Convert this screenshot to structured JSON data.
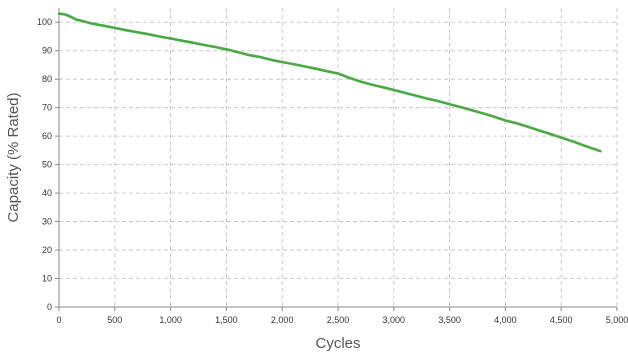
{
  "chart_data": {
    "type": "line",
    "xlabel": "Cycles",
    "ylabel": "Capacity (% Rated)",
    "xlim": [
      0,
      5000
    ],
    "ylim": [
      0,
      105
    ],
    "x_ticks": [
      0,
      500,
      1000,
      1500,
      2000,
      2500,
      3000,
      3500,
      4000,
      4500,
      5000
    ],
    "x_tick_labels": [
      "0",
      "500",
      "1,000",
      "1,500",
      "2,000",
      "2,500",
      "3,000",
      "3,500",
      "4,000",
      "4,500",
      "5,000"
    ],
    "y_ticks": [
      0,
      10,
      20,
      30,
      40,
      50,
      60,
      70,
      80,
      90,
      100
    ],
    "y_tick_labels": [
      "0",
      "10",
      "20",
      "30",
      "40",
      "50",
      "60",
      "70",
      "80",
      "90",
      "100"
    ],
    "grid": true,
    "series": [
      {
        "color": "#4aa845",
        "x": [
          0,
          50,
          100,
          150,
          200,
          300,
          400,
          500,
          600,
          700,
          800,
          900,
          1000,
          1100,
          1200,
          1300,
          1400,
          1500,
          1600,
          1700,
          1800,
          1900,
          2000,
          2100,
          2200,
          2300,
          2400,
          2500,
          2600,
          2700,
          2800,
          2900,
          3000,
          3100,
          3200,
          3300,
          3400,
          3500,
          3600,
          3700,
          3800,
          3900,
          4000,
          4100,
          4200,
          4300,
          4400,
          4500,
          4600,
          4700,
          4800,
          4850
        ],
        "values": [
          103,
          102.8,
          102,
          101,
          100.5,
          99.5,
          98.8,
          98,
          97.2,
          96.5,
          95.8,
          95,
          94.3,
          93.5,
          92.8,
          92,
          91.3,
          90.5,
          89.5,
          88.5,
          87.8,
          86.8,
          86,
          85.3,
          84.5,
          83.7,
          82.8,
          82,
          80.5,
          79.2,
          78.1,
          77.2,
          76.2,
          75.2,
          74.2,
          73.2,
          72.3,
          71.2,
          70.2,
          69.1,
          68,
          66.8,
          65.5,
          64.5,
          63.3,
          62,
          60.8,
          59.5,
          58.2,
          56.8,
          55.4,
          54.7
        ]
      }
    ]
  }
}
